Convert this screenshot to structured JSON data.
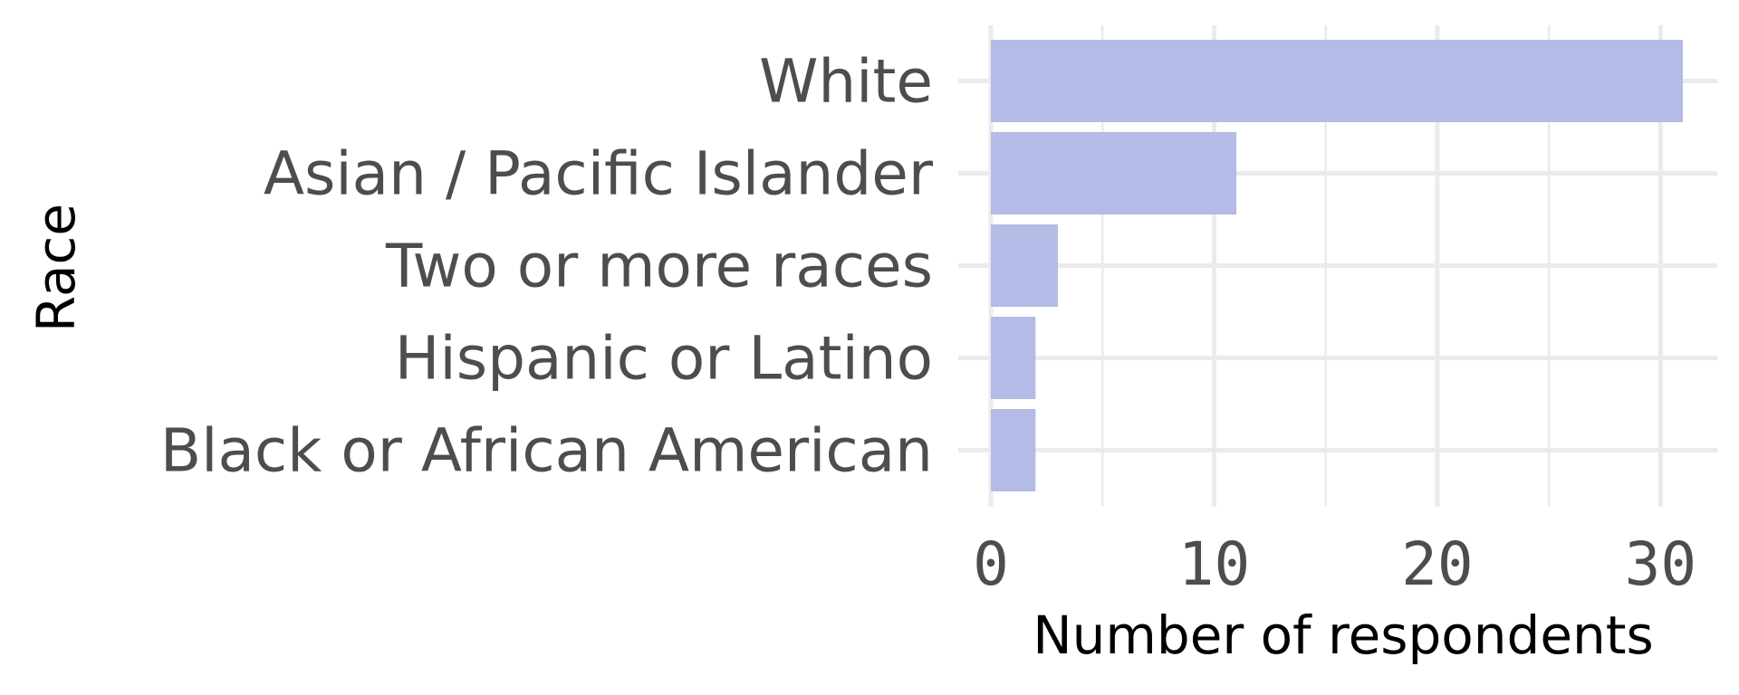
{
  "chart_data": {
    "type": "bar",
    "orientation": "horizontal",
    "categories": [
      "White",
      "Asian / Pacific Islander",
      "Two or more races",
      "Hispanic or Latino",
      "Black or African American"
    ],
    "values": [
      31,
      11,
      3,
      2,
      2
    ],
    "xlabel": "Number of respondents",
    "ylabel": "Race",
    "xlim": [
      0,
      32.5
    ],
    "xticks": [
      0,
      10,
      20,
      30
    ],
    "xtick_labels": [
      "0",
      "10",
      "20",
      "30"
    ],
    "bar_color": "#b3bbe6",
    "grid": true,
    "legend": "none"
  }
}
